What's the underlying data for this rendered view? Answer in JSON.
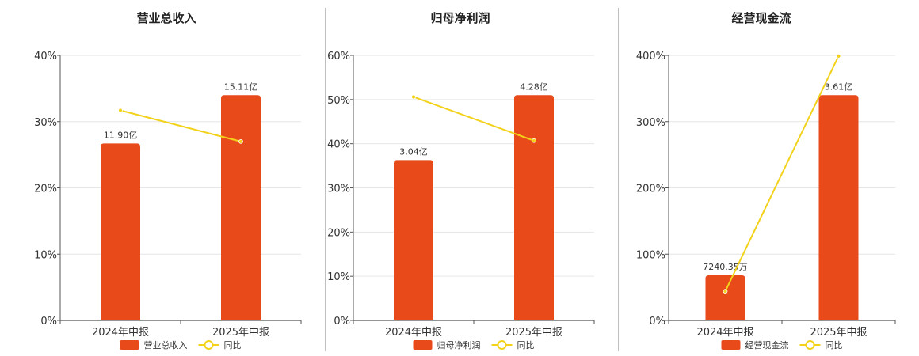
{
  "colors": {
    "bar": "#e84a1a",
    "line": "#f2d21b",
    "grid": "#e6e6e6",
    "axis": "#555555"
  },
  "chart_data": [
    {
      "type": "bar",
      "title": "营业总收入",
      "categories": [
        "2024年中报",
        "2025年中报"
      ],
      "ylim": [
        0,
        40
      ],
      "y_ticks": [
        0,
        10,
        20,
        30,
        40
      ],
      "y_tick_labels": [
        "0%",
        "10%",
        "20%",
        "30%",
        "40%"
      ],
      "series": [
        {
          "name": "营业总收入",
          "kind": "bar",
          "values": [
            26.7,
            34
          ],
          "labels": [
            "11.90亿",
            "15.11亿"
          ]
        },
        {
          "name": "同比",
          "kind": "line",
          "values": [
            31.7,
            27
          ]
        }
      ],
      "legend": "bottom-center",
      "grid": true
    },
    {
      "type": "bar",
      "title": "归母净利润",
      "categories": [
        "2024年中报",
        "2025年中报"
      ],
      "ylim": [
        0,
        60
      ],
      "y_ticks": [
        0,
        10,
        20,
        30,
        40,
        50,
        60
      ],
      "y_tick_labels": [
        "0%",
        "10%",
        "20%",
        "30%",
        "40%",
        "50%",
        "60%"
      ],
      "series": [
        {
          "name": "归母净利润",
          "kind": "bar",
          "values": [
            36.3,
            51
          ],
          "labels": [
            "3.04亿",
            "4.28亿"
          ]
        },
        {
          "name": "同比",
          "kind": "line",
          "values": [
            50.6,
            40.7
          ]
        }
      ],
      "legend": "bottom-center",
      "grid": true
    },
    {
      "type": "bar",
      "title": "经营现金流",
      "categories": [
        "2024年中报",
        "2025年中报"
      ],
      "ylim": [
        0,
        400
      ],
      "y_ticks": [
        0,
        100,
        200,
        300,
        400
      ],
      "y_tick_labels": [
        "0%",
        "100%",
        "200%",
        "300%",
        "400%"
      ],
      "series": [
        {
          "name": "经营现金流",
          "kind": "bar",
          "values": [
            68,
            340
          ],
          "labels": [
            "7240.35万",
            "3.61亿"
          ]
        },
        {
          "name": "同比",
          "kind": "line",
          "values": [
            44,
            399
          ]
        }
      ],
      "legend": "bottom-center",
      "grid": true
    }
  ]
}
